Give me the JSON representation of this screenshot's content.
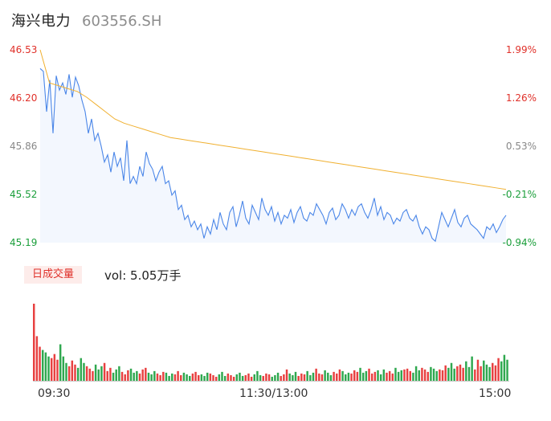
{
  "header": {
    "name": "海兴电力",
    "code": "603556.SH"
  },
  "chart_data": [
    {
      "type": "line",
      "y_ticks": [
        "46.53",
        "46.20",
        "45.86",
        "45.52",
        "45.19"
      ],
      "pct_ticks": [
        "1.99%",
        "1.26%",
        "0.53%",
        "-0.21%",
        "-0.94%"
      ],
      "ylim": [
        45.19,
        46.53
      ],
      "x_ticks": [
        "09:30",
        "11:30/13:00",
        "15:00"
      ],
      "series": [
        {
          "color": "#4a86e8",
          "values": [
            46.4,
            46.38,
            46.1,
            46.32,
            45.95,
            46.35,
            46.25,
            46.3,
            46.22,
            46.36,
            46.2,
            46.34,
            46.28,
            46.18,
            46.1,
            45.95,
            46.05,
            45.9,
            45.95,
            45.86,
            45.75,
            45.8,
            45.68,
            45.82,
            45.72,
            45.78,
            45.62,
            45.9,
            45.6,
            45.65,
            45.6,
            45.72,
            45.65,
            45.82,
            45.74,
            45.7,
            45.62,
            45.68,
            45.72,
            45.6,
            45.62,
            45.52,
            45.55,
            45.42,
            45.45,
            45.35,
            45.38,
            45.3,
            45.34,
            45.28,
            45.32,
            45.22,
            45.3,
            45.25,
            45.35,
            45.28,
            45.4,
            45.32,
            45.28,
            45.4,
            45.44,
            45.3,
            45.38,
            45.48,
            45.36,
            45.32,
            45.45,
            45.4,
            45.35,
            45.5,
            45.42,
            45.38,
            45.44,
            45.34,
            45.4,
            45.32,
            45.38,
            45.36,
            45.42,
            45.33,
            45.4,
            45.44,
            45.36,
            45.34,
            45.4,
            45.38,
            45.46,
            45.42,
            45.38,
            45.32,
            45.4,
            45.43,
            45.35,
            45.38,
            45.46,
            45.42,
            45.36,
            45.42,
            45.38,
            45.44,
            45.46,
            45.4,
            45.36,
            45.42,
            45.5,
            45.38,
            45.44,
            45.35,
            45.4,
            45.38,
            45.32,
            45.36,
            45.34,
            45.4,
            45.42,
            45.36,
            45.34,
            45.38,
            45.3,
            45.25,
            45.3,
            45.28,
            45.22,
            45.2,
            45.3,
            45.4,
            45.35,
            45.3,
            45.36,
            45.42,
            45.33,
            45.3,
            45.36,
            45.38,
            45.32,
            45.3,
            45.28,
            45.25,
            45.22,
            45.3,
            45.28,
            45.32,
            45.26,
            45.3,
            45.35,
            45.38
          ]
        },
        {
          "color": "#f0b030",
          "values": [
            46.53,
            46.3,
            46.28,
            46.26,
            46.24,
            46.2,
            46.15,
            46.1,
            46.05,
            46.02,
            46,
            45.98,
            45.96,
            45.94,
            45.92,
            45.91,
            45.9,
            45.89,
            45.88,
            45.87,
            45.86,
            45.85,
            45.84,
            45.83,
            45.82,
            45.81,
            45.8,
            45.79,
            45.78,
            45.77,
            45.76,
            45.75,
            45.74,
            45.73,
            45.72,
            45.71,
            45.7,
            45.69,
            45.68,
            45.67,
            45.66,
            45.65,
            45.64,
            45.63,
            45.62,
            45.61,
            45.6,
            45.59,
            45.58,
            45.57,
            45.56
          ]
        }
      ]
    },
    {
      "type": "bar",
      "title": "日成交量",
      "summary": "vol: 5.05万手",
      "values": [
        95,
        55,
        42,
        38,
        35,
        30,
        28,
        33,
        26,
        45,
        30,
        22,
        18,
        25,
        20,
        16,
        28,
        22,
        18,
        15,
        12,
        20,
        14,
        18,
        22,
        12,
        16,
        10,
        14,
        18,
        11,
        8,
        13,
        15,
        10,
        12,
        9,
        14,
        16,
        10,
        8,
        12,
        9,
        7,
        11,
        10,
        6,
        9,
        8,
        12,
        7,
        10,
        8,
        6,
        9,
        11,
        7,
        8,
        6,
        10,
        9,
        7,
        5,
        8,
        11,
        6,
        9,
        7,
        5,
        8,
        10,
        6,
        7,
        9,
        5,
        8,
        12,
        7,
        6,
        9,
        8,
        5,
        7,
        10,
        6,
        8,
        14,
        9,
        7,
        11,
        6,
        9,
        8,
        12,
        7,
        10,
        15,
        9,
        8,
        13,
        10,
        7,
        11,
        9,
        14,
        12,
        8,
        10,
        9,
        13,
        11,
        16,
        10,
        12,
        15,
        9,
        11,
        13,
        8,
        14,
        10,
        12,
        9,
        16,
        11,
        13,
        14,
        15,
        12,
        10,
        18,
        13,
        16,
        14,
        11,
        17,
        15,
        12,
        14,
        13,
        19,
        16,
        22,
        15,
        18,
        20,
        16,
        24,
        17,
        30,
        14,
        26,
        18,
        25,
        20,
        17,
        22,
        19,
        28,
        24,
        32,
        26
      ],
      "colors_up": "#e84040",
      "colors_down": "#2fa84f"
    }
  ]
}
